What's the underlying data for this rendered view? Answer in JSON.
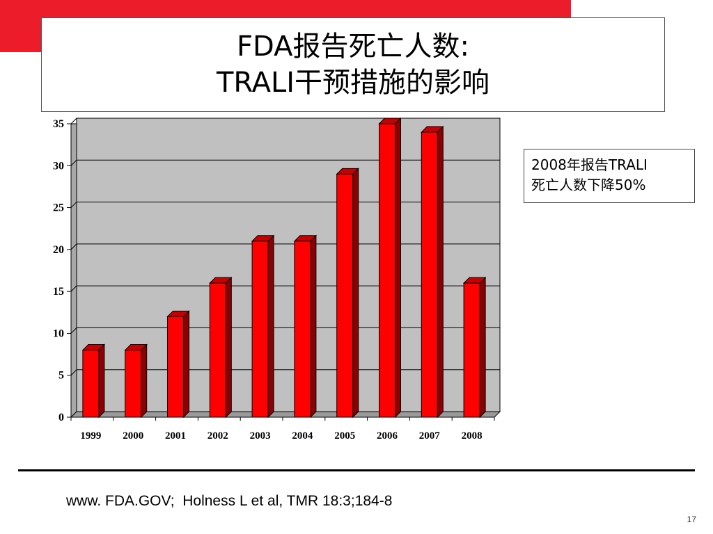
{
  "slide": {
    "title_line1": "FDA报告死亡人数:",
    "title_line2": "TRALI干预措施的影响",
    "annotation_line1": "2008年报告TRALI",
    "annotation_line2": "死亡人数下降50%",
    "source": "www. FDA.GOV;  Holness L et al, TMR 18:3;184-8",
    "page_number": "17"
  },
  "colors": {
    "accent": "#ec1c2a",
    "bar_front": "#ff0000",
    "bar_side": "#8b0000",
    "bar_top": "#c80000",
    "plot_bg": "#c0c0c0"
  },
  "chart_data": {
    "type": "bar",
    "categories": [
      "1999",
      "2000",
      "2001",
      "2002",
      "2003",
      "2004",
      "2005",
      "2006",
      "2007",
      "2008"
    ],
    "values": [
      8,
      8,
      12,
      16,
      21,
      21,
      29,
      35,
      34,
      16
    ],
    "ylim": [
      0,
      35
    ],
    "yticks": [
      0,
      5,
      10,
      15,
      20,
      25,
      30,
      35
    ],
    "grid": true,
    "legend": "none",
    "title": "",
    "xlabel": "",
    "ylabel": ""
  }
}
